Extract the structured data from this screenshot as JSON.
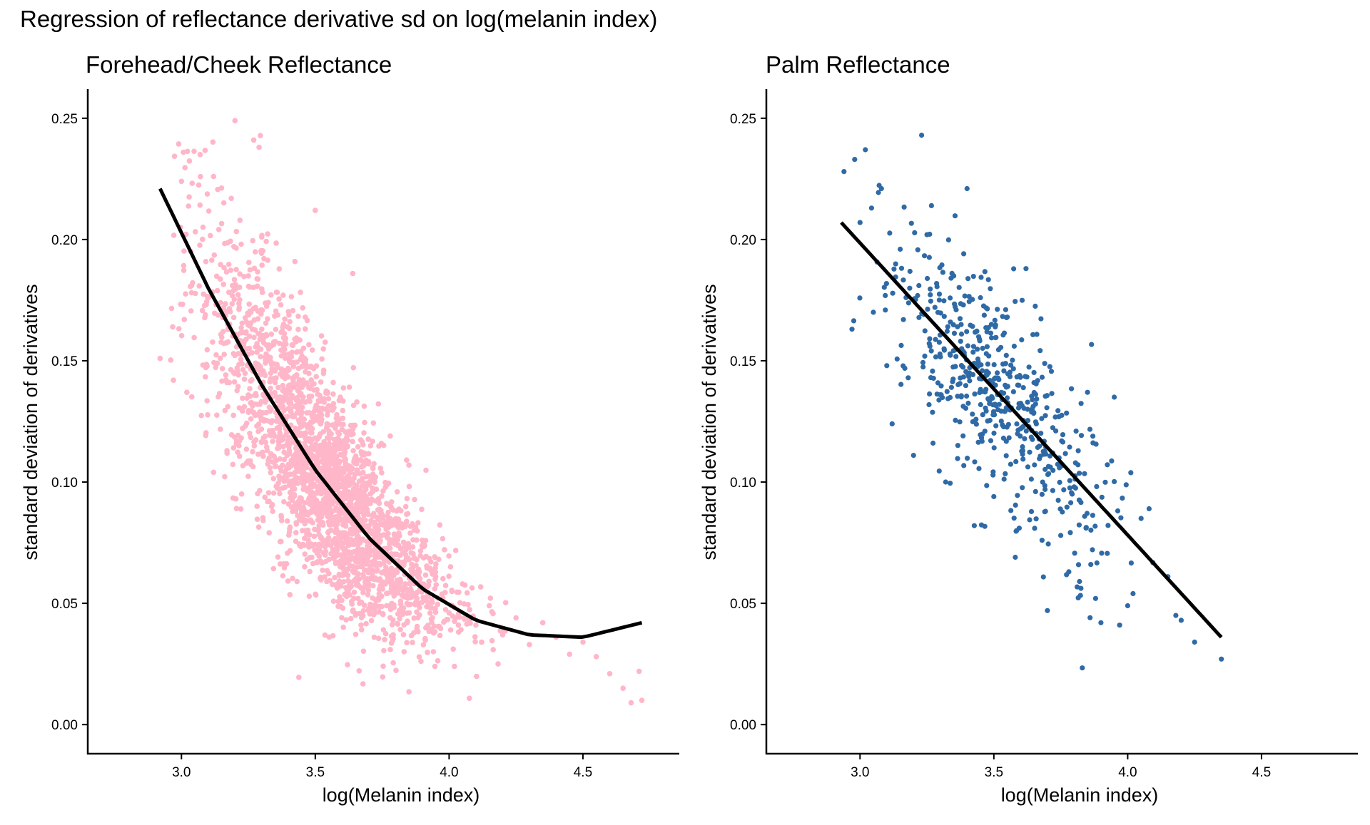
{
  "figure": {
    "title": "Regression of reflectance derivative sd on log(melanin index)"
  },
  "chart_data": [
    {
      "type": "scatter",
      "title": "Forehead/Cheek Reflectance",
      "xlabel": "log(Melanin index)",
      "ylabel": "standard deviation of derivatives",
      "xlim": [
        2.65,
        4.86
      ],
      "ylim": [
        -0.012,
        0.262
      ],
      "xticks": [
        3.0,
        3.5,
        4.0,
        4.5
      ],
      "xtick_labels": [
        "3.0",
        "3.5",
        "4.0",
        "4.5"
      ],
      "yticks": [
        0.0,
        0.05,
        0.1,
        0.15,
        0.2,
        0.25
      ],
      "ytick_labels": [
        "0.00",
        "0.05",
        "0.10",
        "0.15",
        "0.20",
        "0.25"
      ],
      "point_color": "#FFB6C8",
      "line_color": "#000000",
      "point_sample": [
        {
          "x": 2.92,
          "y": 0.151
        },
        {
          "x": 2.97,
          "y": 0.142
        },
        {
          "x": 3.0,
          "y": 0.224
        },
        {
          "x": 3.02,
          "y": 0.137
        },
        {
          "x": 3.07,
          "y": 0.235
        },
        {
          "x": 3.1,
          "y": 0.176
        },
        {
          "x": 3.12,
          "y": 0.226
        },
        {
          "x": 3.2,
          "y": 0.249
        },
        {
          "x": 3.27,
          "y": 0.241
        },
        {
          "x": 3.29,
          "y": 0.238
        },
        {
          "x": 3.12,
          "y": 0.104
        },
        {
          "x": 3.2,
          "y": 0.145
        },
        {
          "x": 3.25,
          "y": 0.185
        },
        {
          "x": 3.3,
          "y": 0.163
        },
        {
          "x": 3.3,
          "y": 0.201
        },
        {
          "x": 3.35,
          "y": 0.141
        },
        {
          "x": 3.38,
          "y": 0.177
        },
        {
          "x": 3.4,
          "y": 0.121
        },
        {
          "x": 3.42,
          "y": 0.108
        },
        {
          "x": 3.45,
          "y": 0.152
        },
        {
          "x": 3.48,
          "y": 0.098
        },
        {
          "x": 3.5,
          "y": 0.212
        },
        {
          "x": 3.5,
          "y": 0.091
        },
        {
          "x": 3.52,
          "y": 0.124
        },
        {
          "x": 3.55,
          "y": 0.077
        },
        {
          "x": 3.58,
          "y": 0.101
        },
        {
          "x": 3.6,
          "y": 0.068
        },
        {
          "x": 3.62,
          "y": 0.094
        },
        {
          "x": 3.64,
          "y": 0.186
        },
        {
          "x": 3.65,
          "y": 0.059
        },
        {
          "x": 3.7,
          "y": 0.082
        },
        {
          "x": 3.72,
          "y": 0.036
        },
        {
          "x": 3.75,
          "y": 0.071
        },
        {
          "x": 3.78,
          "y": 0.119
        },
        {
          "x": 3.8,
          "y": 0.058
        },
        {
          "x": 3.85,
          "y": 0.107
        },
        {
          "x": 3.88,
          "y": 0.052
        },
        {
          "x": 3.9,
          "y": 0.076
        },
        {
          "x": 3.95,
          "y": 0.061
        },
        {
          "x": 4.0,
          "y": 0.046
        },
        {
          "x": 4.02,
          "y": 0.024
        },
        {
          "x": 4.05,
          "y": 0.058
        },
        {
          "x": 4.1,
          "y": 0.041
        },
        {
          "x": 4.15,
          "y": 0.049
        },
        {
          "x": 4.2,
          "y": 0.037
        },
        {
          "x": 4.25,
          "y": 0.044
        },
        {
          "x": 4.3,
          "y": 0.033
        },
        {
          "x": 4.35,
          "y": 0.042
        },
        {
          "x": 4.4,
          "y": 0.036
        },
        {
          "x": 4.45,
          "y": 0.029
        },
        {
          "x": 4.5,
          "y": 0.034
        },
        {
          "x": 4.55,
          "y": 0.028
        },
        {
          "x": 4.6,
          "y": 0.021
        },
        {
          "x": 4.65,
          "y": 0.015
        },
        {
          "x": 4.68,
          "y": 0.009
        },
        {
          "x": 4.71,
          "y": 0.022
        },
        {
          "x": 4.72,
          "y": 0.01
        }
      ],
      "fit": {
        "model": "quadratic",
        "x": [
          2.92,
          3.1,
          3.3,
          3.5,
          3.7,
          3.9,
          4.1,
          4.3,
          4.5,
          4.72
        ],
        "y": [
          0.221,
          0.18,
          0.14,
          0.105,
          0.077,
          0.056,
          0.043,
          0.037,
          0.036,
          0.042
        ]
      }
    },
    {
      "type": "scatter",
      "title": "Palm Reflectance",
      "xlabel": "log(Melanin index)",
      "ylabel": "standard deviation of derivatives",
      "xlim": [
        2.65,
        4.86
      ],
      "ylim": [
        -0.012,
        0.262
      ],
      "xticks": [
        3.0,
        3.5,
        4.0,
        4.5
      ],
      "xtick_labels": [
        "3.0",
        "3.5",
        "4.0",
        "4.5"
      ],
      "yticks": [
        0.0,
        0.05,
        0.1,
        0.15,
        0.2,
        0.25
      ],
      "ytick_labels": [
        "0.00",
        "0.05",
        "0.10",
        "0.15",
        "0.20",
        "0.25"
      ],
      "point_color": "#2F6AA6",
      "line_color": "#000000",
      "point_sample": [
        {
          "x": 2.94,
          "y": 0.228
        },
        {
          "x": 2.98,
          "y": 0.233
        },
        {
          "x": 3.0,
          "y": 0.207
        },
        {
          "x": 3.02,
          "y": 0.237
        },
        {
          "x": 2.97,
          "y": 0.163
        },
        {
          "x": 3.05,
          "y": 0.17
        },
        {
          "x": 3.08,
          "y": 0.221
        },
        {
          "x": 3.1,
          "y": 0.148
        },
        {
          "x": 3.12,
          "y": 0.124
        },
        {
          "x": 3.15,
          "y": 0.196
        },
        {
          "x": 3.18,
          "y": 0.143
        },
        {
          "x": 3.2,
          "y": 0.111
        },
        {
          "x": 3.22,
          "y": 0.181
        },
        {
          "x": 3.23,
          "y": 0.243
        },
        {
          "x": 3.25,
          "y": 0.202
        },
        {
          "x": 3.28,
          "y": 0.172
        },
        {
          "x": 3.3,
          "y": 0.136
        },
        {
          "x": 3.32,
          "y": 0.1
        },
        {
          "x": 3.35,
          "y": 0.185
        },
        {
          "x": 3.38,
          "y": 0.155
        },
        {
          "x": 3.4,
          "y": 0.221
        },
        {
          "x": 3.42,
          "y": 0.128
        },
        {
          "x": 3.45,
          "y": 0.176
        },
        {
          "x": 3.48,
          "y": 0.145
        },
        {
          "x": 3.5,
          "y": 0.094
        },
        {
          "x": 3.52,
          "y": 0.132
        },
        {
          "x": 3.55,
          "y": 0.168
        },
        {
          "x": 3.58,
          "y": 0.069
        },
        {
          "x": 3.6,
          "y": 0.122
        },
        {
          "x": 3.62,
          "y": 0.188
        },
        {
          "x": 3.65,
          "y": 0.141
        },
        {
          "x": 3.68,
          "y": 0.076
        },
        {
          "x": 3.7,
          "y": 0.047
        },
        {
          "x": 3.72,
          "y": 0.112
        },
        {
          "x": 3.75,
          "y": 0.078
        },
        {
          "x": 3.78,
          "y": 0.063
        },
        {
          "x": 3.8,
          "y": 0.098
        },
        {
          "x": 3.82,
          "y": 0.059
        },
        {
          "x": 3.85,
          "y": 0.137
        },
        {
          "x": 3.88,
          "y": 0.052
        },
        {
          "x": 3.9,
          "y": 0.042
        },
        {
          "x": 3.95,
          "y": 0.135
        },
        {
          "x": 3.97,
          "y": 0.041
        },
        {
          "x": 4.0,
          "y": 0.049
        },
        {
          "x": 4.02,
          "y": 0.054
        },
        {
          "x": 4.05,
          "y": 0.085
        },
        {
          "x": 4.08,
          "y": 0.089
        },
        {
          "x": 4.15,
          "y": 0.061
        },
        {
          "x": 4.18,
          "y": 0.045
        },
        {
          "x": 4.2,
          "y": 0.043
        },
        {
          "x": 4.25,
          "y": 0.034
        },
        {
          "x": 4.35,
          "y": 0.027
        }
      ],
      "fit": {
        "model": "linear",
        "x": [
          2.93,
          4.35
        ],
        "y": [
          0.207,
          0.036
        ]
      }
    }
  ]
}
